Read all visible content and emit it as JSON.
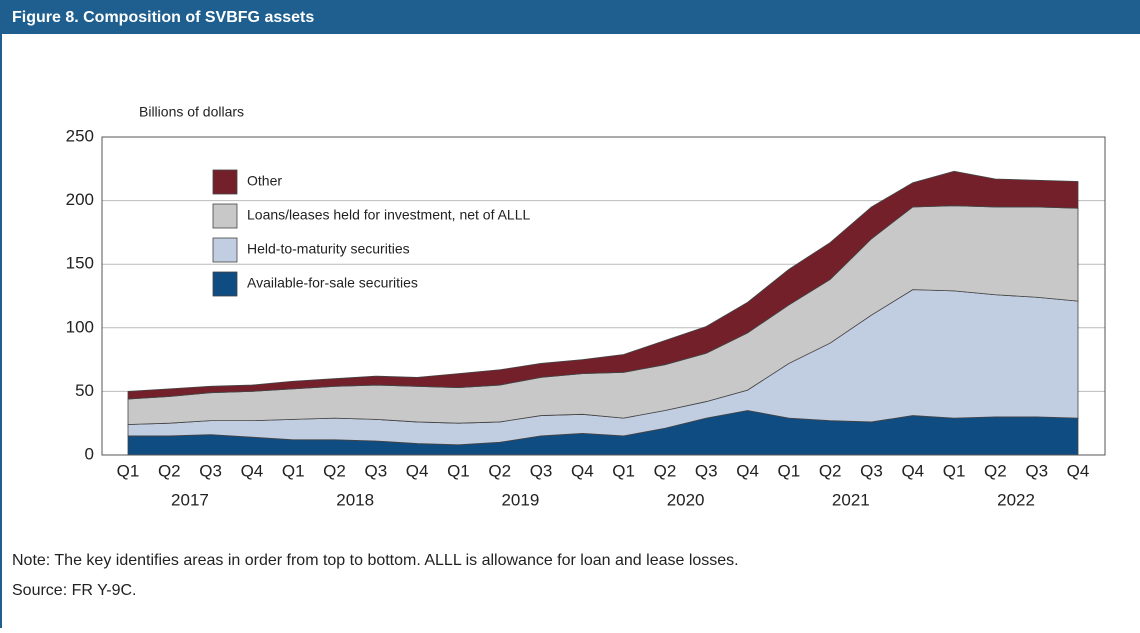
{
  "chart_data": {
    "type": "stacked_area",
    "title": "Figure 8. Composition of SVBFG assets",
    "y_label": "Billions of dollars",
    "categories": [
      "Q1",
      "Q2",
      "Q3",
      "Q4",
      "Q1",
      "Q2",
      "Q3",
      "Q4",
      "Q1",
      "Q2",
      "Q3",
      "Q4",
      "Q1",
      "Q2",
      "Q3",
      "Q4",
      "Q1",
      "Q2",
      "Q3",
      "Q4",
      "Q1",
      "Q2",
      "Q3",
      "Q4"
    ],
    "years": [
      "2017",
      "2018",
      "2019",
      "2020",
      "2021",
      "2022"
    ],
    "series": [
      {
        "name": "Available-for-sale securities",
        "color": "#0e4c82",
        "values": [
          15,
          15,
          16,
          14,
          12,
          12,
          11,
          9,
          8,
          10,
          15,
          17,
          15,
          21,
          29,
          35,
          29,
          27,
          26,
          31,
          29,
          30,
          30,
          29
        ]
      },
      {
        "name": "Held-to-maturity securities",
        "color": "#c1cde1",
        "values": [
          9,
          10,
          11,
          13,
          16,
          17,
          17,
          17,
          17,
          16,
          16,
          15,
          14,
          14,
          13,
          16,
          43,
          61,
          84,
          99,
          100,
          96,
          94,
          92
        ]
      },
      {
        "name": "Loans/leases held for investment, net of ALLL",
        "color": "#c8c8c8",
        "values": [
          20,
          21,
          22,
          23,
          24,
          25,
          27,
          28,
          28,
          29,
          30,
          32,
          36,
          36,
          38,
          45,
          46,
          50,
          60,
          65,
          67,
          69,
          71,
          73
        ]
      },
      {
        "name": "Other",
        "color": "#74202a",
        "values": [
          6,
          6,
          5,
          5,
          6,
          6,
          7,
          7,
          11,
          12,
          11,
          11,
          14,
          19,
          21,
          24,
          28,
          29,
          25,
          19,
          27,
          22,
          21,
          21
        ]
      }
    ],
    "ylim": [
      0,
      250
    ],
    "yticks": [
      0,
      50,
      100,
      150,
      200,
      250
    ],
    "grid": true,
    "notes": [
      "Note: The key identifies areas in order from top to bottom. ALLL is allowance for loan and lease losses.",
      "Source: FR Y-9C."
    ]
  }
}
